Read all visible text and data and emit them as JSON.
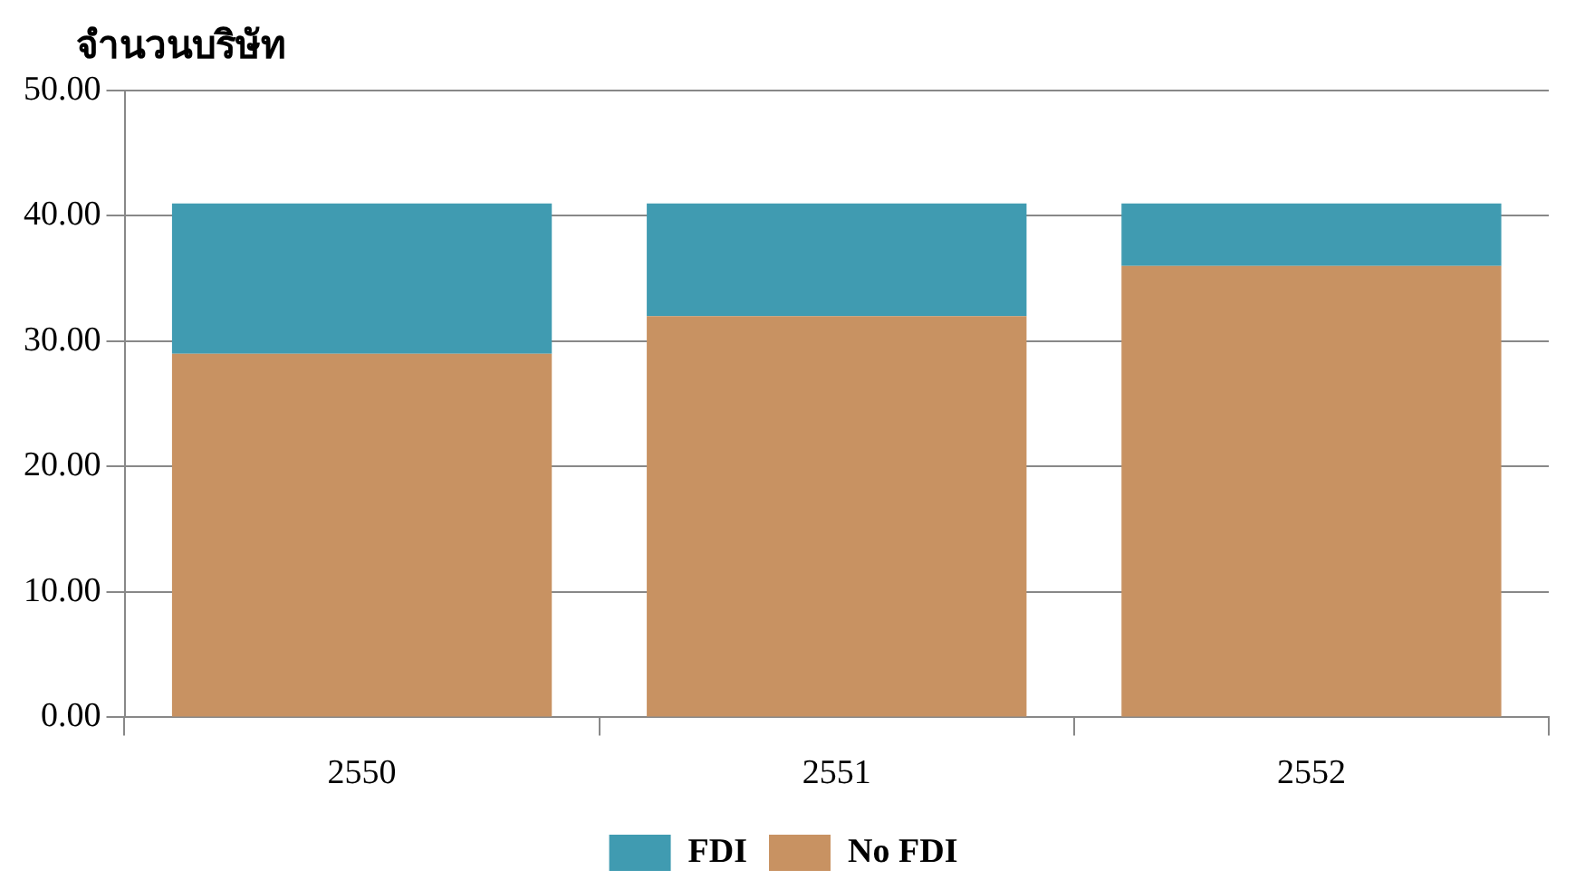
{
  "chart_data": {
    "type": "bar",
    "ylabel": "จำนวนบริษัท",
    "categories": [
      "2550",
      "2551",
      "2552"
    ],
    "stacked": true,
    "series": [
      {
        "name": "No FDI",
        "color": "#c89262",
        "values": [
          29,
          32,
          36
        ]
      },
      {
        "name": "FDI",
        "color": "#409bb1",
        "values": [
          12,
          9,
          5
        ]
      }
    ],
    "ylim": [
      0,
      50
    ],
    "yticks": [
      {
        "value": 0,
        "label": "0.00"
      },
      {
        "value": 10,
        "label": "10.00"
      },
      {
        "value": 20,
        "label": "20.00"
      },
      {
        "value": 30,
        "label": "30.00"
      },
      {
        "value": 40,
        "label": "40.00"
      },
      {
        "value": 50,
        "label": "50.00"
      }
    ],
    "grid": "y",
    "legend": "bottom"
  }
}
